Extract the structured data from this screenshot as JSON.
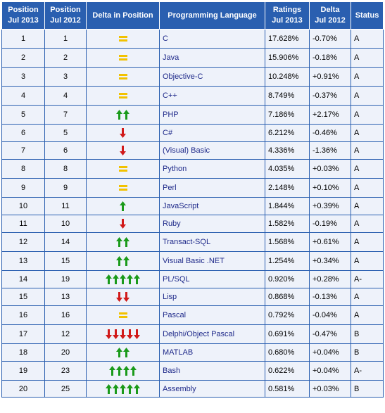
{
  "headers": {
    "pos2013": [
      "Position",
      "Jul 2013"
    ],
    "pos2012": [
      "Position",
      "Jul 2012"
    ],
    "delta_pos": "Delta in Position",
    "language": "Programming Language",
    "ratings": [
      "Ratings",
      "Jul 2013"
    ],
    "delta": [
      "Delta",
      "Jul 2012"
    ],
    "status": "Status"
  },
  "colors": {
    "header_bg": "#2a5fb0",
    "cell_bg": "#eef2fa",
    "up": "#1a9a1a",
    "down": "#d11a1a",
    "same": "#f2c200"
  },
  "rows": [
    {
      "pos2013": "1",
      "pos2012": "1",
      "lang": "C",
      "rating": "17.628%",
      "delta": "-0.70%",
      "status": "A",
      "change": {
        "type": "same",
        "count": 1
      }
    },
    {
      "pos2013": "2",
      "pos2012": "2",
      "lang": "Java",
      "rating": "15.906%",
      "delta": "-0.18%",
      "status": "A",
      "change": {
        "type": "same",
        "count": 1
      }
    },
    {
      "pos2013": "3",
      "pos2012": "3",
      "lang": "Objective-C",
      "rating": "10.248%",
      "delta": "+0.91%",
      "status": "A",
      "change": {
        "type": "same",
        "count": 1
      }
    },
    {
      "pos2013": "4",
      "pos2012": "4",
      "lang": "C++",
      "rating": "8.749%",
      "delta": "-0.37%",
      "status": "A",
      "change": {
        "type": "same",
        "count": 1
      }
    },
    {
      "pos2013": "5",
      "pos2012": "7",
      "lang": "PHP",
      "rating": "7.186%",
      "delta": "+2.17%",
      "status": "A",
      "change": {
        "type": "up",
        "count": 2
      }
    },
    {
      "pos2013": "6",
      "pos2012": "5",
      "lang": "C#",
      "rating": "6.212%",
      "delta": "-0.46%",
      "status": "A",
      "change": {
        "type": "down",
        "count": 1
      }
    },
    {
      "pos2013": "7",
      "pos2012": "6",
      "lang": "(Visual) Basic",
      "rating": "4.336%",
      "delta": "-1.36%",
      "status": "A",
      "change": {
        "type": "down",
        "count": 1
      }
    },
    {
      "pos2013": "8",
      "pos2012": "8",
      "lang": "Python",
      "rating": "4.035%",
      "delta": "+0.03%",
      "status": "A",
      "change": {
        "type": "same",
        "count": 1
      }
    },
    {
      "pos2013": "9",
      "pos2012": "9",
      "lang": "Perl",
      "rating": "2.148%",
      "delta": "+0.10%",
      "status": "A",
      "change": {
        "type": "same",
        "count": 1
      }
    },
    {
      "pos2013": "10",
      "pos2012": "11",
      "lang": "JavaScript",
      "rating": "1.844%",
      "delta": "+0.39%",
      "status": "A",
      "change": {
        "type": "up",
        "count": 1
      }
    },
    {
      "pos2013": "11",
      "pos2012": "10",
      "lang": "Ruby",
      "rating": "1.582%",
      "delta": "-0.19%",
      "status": "A",
      "change": {
        "type": "down",
        "count": 1
      }
    },
    {
      "pos2013": "12",
      "pos2012": "14",
      "lang": "Transact-SQL",
      "rating": "1.568%",
      "delta": "+0.61%",
      "status": "A",
      "change": {
        "type": "up",
        "count": 2
      }
    },
    {
      "pos2013": "13",
      "pos2012": "15",
      "lang": "Visual Basic .NET",
      "rating": "1.254%",
      "delta": "+0.34%",
      "status": "A",
      "change": {
        "type": "up",
        "count": 2
      }
    },
    {
      "pos2013": "14",
      "pos2012": "19",
      "lang": "PL/SQL",
      "rating": "0.920%",
      "delta": "+0.28%",
      "status": "A-",
      "change": {
        "type": "up",
        "count": 5
      }
    },
    {
      "pos2013": "15",
      "pos2012": "13",
      "lang": "Lisp",
      "rating": "0.868%",
      "delta": "-0.13%",
      "status": "A",
      "change": {
        "type": "down",
        "count": 2
      }
    },
    {
      "pos2013": "16",
      "pos2012": "16",
      "lang": "Pascal",
      "rating": "0.792%",
      "delta": "-0.04%",
      "status": "A",
      "change": {
        "type": "same",
        "count": 1
      }
    },
    {
      "pos2013": "17",
      "pos2012": "12",
      "lang": "Delphi/Object Pascal",
      "rating": "0.691%",
      "delta": "-0.47%",
      "status": "B",
      "change": {
        "type": "down",
        "count": 5
      }
    },
    {
      "pos2013": "18",
      "pos2012": "20",
      "lang": "MATLAB",
      "rating": "0.680%",
      "delta": "+0.04%",
      "status": "B",
      "change": {
        "type": "up",
        "count": 2
      }
    },
    {
      "pos2013": "19",
      "pos2012": "23",
      "lang": "Bash",
      "rating": "0.622%",
      "delta": "+0.04%",
      "status": "A-",
      "change": {
        "type": "up",
        "count": 4
      }
    },
    {
      "pos2013": "20",
      "pos2012": "25",
      "lang": "Assembly",
      "rating": "0.581%",
      "delta": "+0.03%",
      "status": "B",
      "change": {
        "type": "up",
        "count": 5
      }
    }
  ]
}
